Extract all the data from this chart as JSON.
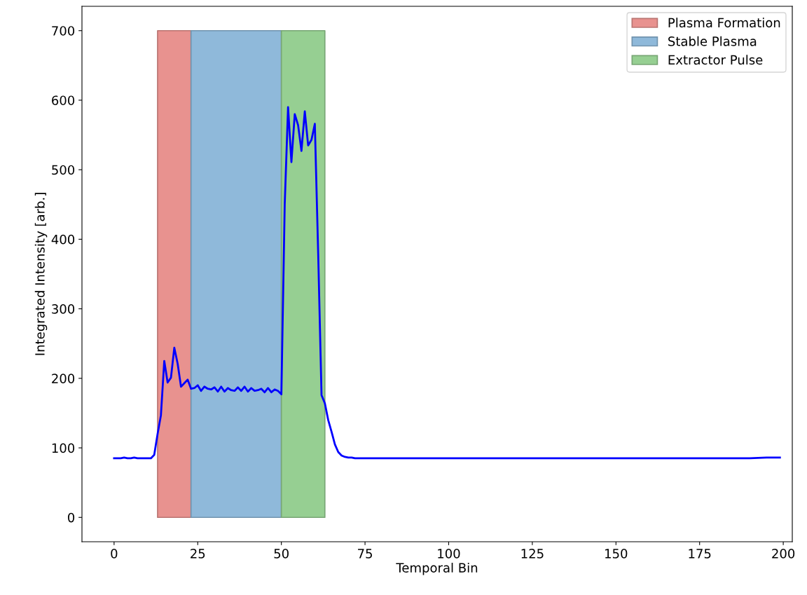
{
  "chart_data": {
    "type": "line",
    "xlabel": "Temporal Bin",
    "ylabel": "Integrated Intensity [arb.]",
    "xlim": [
      -9.6,
      202.7
    ],
    "ylim": [
      -35,
      735
    ],
    "xticks": [
      0,
      25,
      50,
      75,
      100,
      125,
      150,
      175,
      200
    ],
    "yticks": [
      0,
      100,
      200,
      300,
      400,
      500,
      600,
      700
    ],
    "grid": false,
    "legend": "top right",
    "marker": "none",
    "line_style": "solid",
    "series": [
      {
        "type": "area",
        "name": "Plasma Formation",
        "color": "#e8928f",
        "x": [
          13,
          23
        ],
        "values": [
          700,
          700
        ]
      },
      {
        "type": "area",
        "name": "Stable Plasma",
        "color": "#8fb9da",
        "x": [
          23,
          50
        ],
        "values": [
          700,
          700
        ]
      },
      {
        "type": "area",
        "name": "Extractor Pulse",
        "color": "#96cf92",
        "x": [
          50,
          63
        ],
        "values": [
          700,
          700
        ]
      },
      {
        "color": "#0000ff",
        "x": [
          0,
          1,
          2,
          3,
          4,
          5,
          6,
          7,
          8,
          9,
          10,
          11,
          12,
          13,
          14,
          15,
          16,
          17,
          18,
          19,
          20,
          21,
          22,
          23,
          24,
          25,
          26,
          27,
          28,
          29,
          30,
          31,
          32,
          33,
          34,
          35,
          36,
          37,
          38,
          39,
          40,
          41,
          42,
          43,
          44,
          45,
          46,
          47,
          48,
          49,
          50,
          51,
          52,
          53,
          54,
          55,
          56,
          57,
          58,
          59,
          60,
          61,
          62,
          63,
          64,
          65,
          66,
          67,
          68,
          69,
          70,
          71,
          72,
          73,
          74,
          75,
          80,
          85,
          90,
          95,
          100,
          105,
          110,
          115,
          120,
          125,
          130,
          135,
          140,
          145,
          150,
          155,
          160,
          165,
          170,
          175,
          180,
          185,
          190,
          195,
          199
        ],
        "values": [
          85,
          85,
          85,
          86,
          85,
          85,
          86,
          85,
          85,
          85,
          85,
          85,
          90,
          120,
          147,
          225,
          194,
          201,
          244,
          221,
          188,
          193,
          198,
          185,
          186,
          190,
          182,
          188,
          185,
          184,
          187,
          181,
          188,
          181,
          186,
          183,
          182,
          187,
          182,
          188,
          181,
          186,
          182,
          183,
          185,
          180,
          186,
          180,
          184,
          182,
          177,
          450,
          590,
          511,
          580,
          564,
          527,
          584,
          535,
          543,
          566,
          380,
          176,
          164,
          140,
          123,
          105,
          94,
          89,
          87,
          86,
          86,
          85,
          85,
          85,
          85,
          85,
          85,
          85,
          85,
          85,
          85,
          85,
          85,
          85,
          85,
          85,
          85,
          85,
          85,
          85,
          85,
          85,
          85,
          85,
          85,
          85,
          85,
          85,
          86,
          86
        ]
      }
    ]
  }
}
